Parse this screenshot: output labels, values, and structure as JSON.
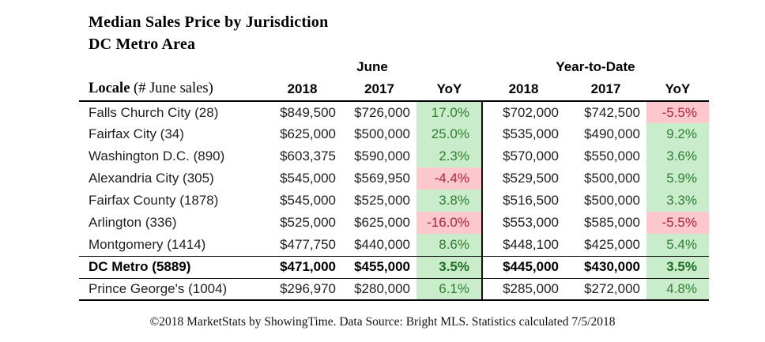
{
  "title": "Median Sales Price by Jurisdiction",
  "subtitle": "DC Metro Area",
  "table": {
    "group_headers": {
      "june": "June",
      "ytd": "Year-to-Date"
    },
    "locale_header": {
      "bold_part": "Locale",
      "regular_part": " (# June sales)"
    },
    "col_headers": [
      "2018",
      "2017",
      "YoY",
      "2018",
      "2017",
      "YoY"
    ],
    "rows": [
      {
        "locale": "Falls Church City (28)",
        "june_2018": "$849,500",
        "june_2017": "$726,000",
        "june_yoy": "17.0%",
        "june_yoy_state": "pos",
        "ytd_2018": "$702,000",
        "ytd_2017": "$742,500",
        "ytd_yoy": "-5.5%",
        "ytd_yoy_state": "neg",
        "emphasis": false
      },
      {
        "locale": "Fairfax City (34)",
        "june_2018": "$625,000",
        "june_2017": "$500,000",
        "june_yoy": "25.0%",
        "june_yoy_state": "pos",
        "ytd_2018": "$535,000",
        "ytd_2017": "$490,000",
        "ytd_yoy": "9.2%",
        "ytd_yoy_state": "pos",
        "emphasis": false
      },
      {
        "locale": "Washington D.C. (890)",
        "june_2018": "$603,375",
        "june_2017": "$590,000",
        "june_yoy": "2.3%",
        "june_yoy_state": "pos",
        "ytd_2018": "$570,000",
        "ytd_2017": "$550,000",
        "ytd_yoy": "3.6%",
        "ytd_yoy_state": "pos",
        "emphasis": false
      },
      {
        "locale": "Alexandria City (305)",
        "june_2018": "$545,000",
        "june_2017": "$569,950",
        "june_yoy": "-4.4%",
        "june_yoy_state": "neg",
        "ytd_2018": "$529,500",
        "ytd_2017": "$500,000",
        "ytd_yoy": "5.9%",
        "ytd_yoy_state": "pos",
        "emphasis": false
      },
      {
        "locale": "Fairfax County (1878)",
        "june_2018": "$545,000",
        "june_2017": "$525,000",
        "june_yoy": "3.8%",
        "june_yoy_state": "pos",
        "ytd_2018": "$516,500",
        "ytd_2017": "$500,000",
        "ytd_yoy": "3.3%",
        "ytd_yoy_state": "pos",
        "emphasis": false
      },
      {
        "locale": "Arlington (336)",
        "june_2018": "$525,000",
        "june_2017": "$625,000",
        "june_yoy": "-16.0%",
        "june_yoy_state": "neg",
        "ytd_2018": "$553,000",
        "ytd_2017": "$585,000",
        "ytd_yoy": "-5.5%",
        "ytd_yoy_state": "neg",
        "emphasis": false
      },
      {
        "locale": "Montgomery (1414)",
        "june_2018": "$477,750",
        "june_2017": "$440,000",
        "june_yoy": "8.6%",
        "june_yoy_state": "pos",
        "ytd_2018": "$448,100",
        "ytd_2017": "$425,000",
        "ytd_yoy": "5.4%",
        "ytd_yoy_state": "pos",
        "emphasis": false
      },
      {
        "locale": "DC Metro (5889)",
        "june_2018": "$471,000",
        "june_2017": "$455,000",
        "june_yoy": "3.5%",
        "june_yoy_state": "pos",
        "ytd_2018": "$445,000",
        "ytd_2017": "$430,000",
        "ytd_yoy": "3.5%",
        "ytd_yoy_state": "pos",
        "emphasis": true
      },
      {
        "locale": "Prince George's (1004)",
        "june_2018": "$296,970",
        "june_2017": "$280,000",
        "june_yoy": "6.1%",
        "june_yoy_state": "pos",
        "ytd_2018": "$285,000",
        "ytd_2017": "$272,000",
        "ytd_yoy": "4.8%",
        "ytd_yoy_state": "pos",
        "emphasis": false
      }
    ]
  },
  "footer": "©2018 MarketStats by ShowingTime. Data Source: Bright MLS. Statistics calculated 7/5/2018",
  "colors": {
    "positive_bg": "#c9edcb",
    "positive_text": "#2f7d33",
    "negative_bg": "#fcc8ce",
    "negative_text": "#aa2636",
    "border": "#000000",
    "text": "#1f1f1f"
  },
  "chart_data": {
    "type": "table",
    "title": "Median Sales Price by Jurisdiction",
    "subtitle": "DC Metro Area",
    "column_groups": [
      "June",
      "Year-to-Date"
    ],
    "columns": [
      "Locale (# June sales)",
      "June 2018",
      "June 2017",
      "June YoY %",
      "YTD 2018",
      "YTD 2017",
      "YTD YoY %"
    ],
    "rows": [
      {
        "locale": "Falls Church City",
        "june_sales": 28,
        "june_2018": 849500,
        "june_2017": 726000,
        "june_yoy_pct": 17.0,
        "ytd_2018": 702000,
        "ytd_2017": 742500,
        "ytd_yoy_pct": -5.5
      },
      {
        "locale": "Fairfax City",
        "june_sales": 34,
        "june_2018": 625000,
        "june_2017": 500000,
        "june_yoy_pct": 25.0,
        "ytd_2018": 535000,
        "ytd_2017": 490000,
        "ytd_yoy_pct": 9.2
      },
      {
        "locale": "Washington D.C.",
        "june_sales": 890,
        "june_2018": 603375,
        "june_2017": 590000,
        "june_yoy_pct": 2.3,
        "ytd_2018": 570000,
        "ytd_2017": 550000,
        "ytd_yoy_pct": 3.6
      },
      {
        "locale": "Alexandria City",
        "june_sales": 305,
        "june_2018": 545000,
        "june_2017": 569950,
        "june_yoy_pct": -4.4,
        "ytd_2018": 529500,
        "ytd_2017": 500000,
        "ytd_yoy_pct": 5.9
      },
      {
        "locale": "Fairfax County",
        "june_sales": 1878,
        "june_2018": 545000,
        "june_2017": 525000,
        "june_yoy_pct": 3.8,
        "ytd_2018": 516500,
        "ytd_2017": 500000,
        "ytd_yoy_pct": 3.3
      },
      {
        "locale": "Arlington",
        "june_sales": 336,
        "june_2018": 525000,
        "june_2017": 625000,
        "june_yoy_pct": -16.0,
        "ytd_2018": 553000,
        "ytd_2017": 585000,
        "ytd_yoy_pct": -5.5
      },
      {
        "locale": "Montgomery",
        "june_sales": 1414,
        "june_2018": 477750,
        "june_2017": 440000,
        "june_yoy_pct": 8.6,
        "ytd_2018": 448100,
        "ytd_2017": 425000,
        "ytd_yoy_pct": 5.4
      },
      {
        "locale": "DC Metro",
        "june_sales": 5889,
        "june_2018": 471000,
        "june_2017": 455000,
        "june_yoy_pct": 3.5,
        "ytd_2018": 445000,
        "ytd_2017": 430000,
        "ytd_yoy_pct": 3.5
      },
      {
        "locale": "Prince George's",
        "june_sales": 1004,
        "june_2018": 296970,
        "june_2017": 280000,
        "june_yoy_pct": 6.1,
        "ytd_2018": 285000,
        "ytd_2017": 272000,
        "ytd_yoy_pct": 4.8
      }
    ]
  }
}
